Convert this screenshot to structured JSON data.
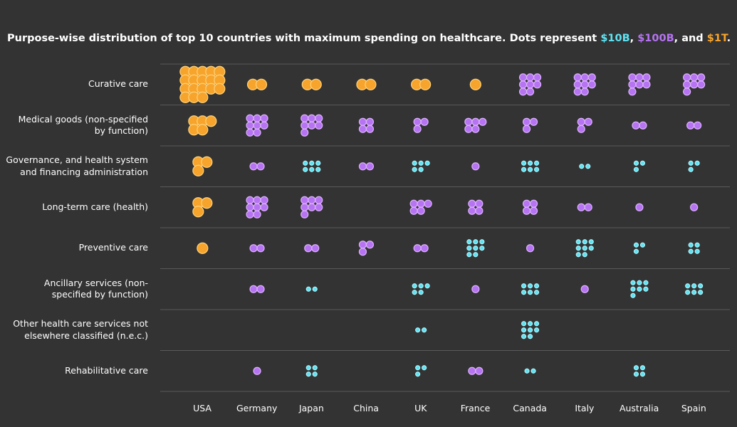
{
  "chart_data": {
    "type": "dot-matrix",
    "title": "Purpose-wise distribution of top 10 countries with maximum spending on healthcare. Dots represent",
    "title_joiners": [
      ",",
      ", and",
      "."
    ],
    "categories": [
      "Curative care",
      "Medical goods (non-specified by function)",
      "Governance, and health system and financing administration",
      "Long-term care (health)",
      "Preventive care",
      "Ancillary services (non-specified by function)",
      "Other health care services not elsewhere classified (n.e.c.)",
      "Rehabilitative care"
    ],
    "countries": [
      "USA",
      "Germany",
      "Japan",
      "China",
      "UK",
      "France",
      "Canada",
      "Italy",
      "Australia",
      "Spain"
    ],
    "series": [
      {
        "name": "$10B",
        "color": "#5ee3f2",
        "values": [
          [
            null,
            null,
            null,
            null,
            null,
            null,
            null,
            null,
            null,
            null
          ],
          [
            null,
            null,
            null,
            null,
            null,
            null,
            null,
            null,
            null,
            null
          ],
          [
            null,
            null,
            6,
            null,
            5,
            null,
            6,
            2,
            3,
            3
          ],
          [
            null,
            null,
            null,
            null,
            null,
            null,
            null,
            null,
            null,
            null
          ],
          [
            null,
            null,
            null,
            null,
            null,
            8,
            null,
            8,
            3,
            4
          ],
          [
            null,
            null,
            2,
            null,
            5,
            null,
            6,
            null,
            7,
            6
          ],
          [
            null,
            null,
            null,
            null,
            2,
            null,
            8,
            null,
            null,
            null
          ],
          [
            null,
            null,
            4,
            null,
            3,
            null,
            2,
            null,
            4,
            null
          ]
        ]
      },
      {
        "name": "$100B",
        "color": "#b673f2",
        "values": [
          [
            null,
            null,
            null,
            null,
            null,
            null,
            8,
            8,
            7,
            7
          ],
          [
            null,
            8,
            7,
            4,
            3,
            5,
            3,
            3,
            2,
            2
          ],
          [
            null,
            2,
            null,
            2,
            null,
            1,
            null,
            null,
            null,
            null
          ],
          [
            null,
            8,
            7,
            null,
            5,
            4,
            4,
            2,
            1,
            1
          ],
          [
            null,
            2,
            2,
            3,
            2,
            null,
            1,
            null,
            null,
            null
          ],
          [
            null,
            2,
            null,
            null,
            null,
            1,
            null,
            1,
            null,
            null
          ],
          [
            null,
            null,
            null,
            null,
            null,
            null,
            null,
            null,
            null,
            null
          ],
          [
            null,
            1,
            null,
            null,
            null,
            2,
            null,
            null,
            null,
            null
          ]
        ]
      },
      {
        "name": "$1T",
        "color": "#f7a42c",
        "values": [
          [
            18,
            2,
            2,
            2,
            2,
            1,
            null,
            null,
            null,
            null
          ],
          [
            5,
            null,
            null,
            null,
            null,
            null,
            null,
            null,
            null,
            null
          ],
          [
            3,
            null,
            null,
            null,
            null,
            null,
            null,
            null,
            null,
            null
          ],
          [
            3,
            null,
            null,
            null,
            null,
            null,
            null,
            null,
            null,
            null
          ],
          [
            1,
            null,
            null,
            null,
            null,
            null,
            null,
            null,
            null,
            null
          ],
          [
            null,
            null,
            null,
            null,
            null,
            null,
            null,
            null,
            null,
            null
          ],
          [
            null,
            null,
            null,
            null,
            null,
            null,
            null,
            null,
            null,
            null
          ],
          [
            null,
            null,
            null,
            null,
            null,
            null,
            null,
            null,
            null,
            null
          ]
        ]
      }
    ]
  }
}
